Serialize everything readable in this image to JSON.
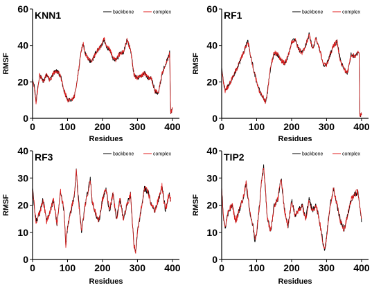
{
  "chart_data": [
    {
      "type": "line",
      "title": "KNN1",
      "xlabel": "Residues",
      "ylabel": "RMSF",
      "xlim": [
        0,
        420
      ],
      "ylim": [
        0,
        60
      ],
      "xticks": [
        0,
        100,
        200,
        300,
        400
      ],
      "yticks": [
        0,
        20,
        40,
        60
      ],
      "legend": [
        "backbone",
        "complex"
      ],
      "legend_position": "top-right",
      "series": [
        {
          "name": "backbone",
          "color": "#000000",
          "noise": 1.2,
          "x": [
            0,
            5,
            10,
            15,
            20,
            30,
            40,
            50,
            60,
            70,
            80,
            90,
            100,
            110,
            120,
            130,
            140,
            145,
            150,
            160,
            170,
            180,
            190,
            200,
            205,
            210,
            220,
            230,
            240,
            250,
            260,
            270,
            280,
            290,
            300,
            310,
            320,
            330,
            340,
            350,
            360,
            370,
            380,
            390,
            392,
            395,
            400
          ],
          "y": [
            21,
            18,
            9,
            17,
            24,
            20,
            24,
            21,
            25,
            26,
            23,
            15,
            10,
            10,
            12,
            24,
            38,
            41,
            36,
            32,
            31,
            36,
            38,
            41,
            44,
            39,
            38,
            33,
            32,
            36,
            36,
            43,
            38,
            24,
            22,
            23,
            25,
            22,
            22,
            15,
            14,
            24,
            30,
            34,
            36,
            3,
            5
          ]
        },
        {
          "name": "complex",
          "color": "#e01e1e",
          "noise": 1.4,
          "x": [
            0,
            5,
            10,
            15,
            20,
            30,
            40,
            50,
            60,
            70,
            80,
            90,
            100,
            110,
            120,
            130,
            140,
            145,
            150,
            160,
            170,
            180,
            190,
            200,
            205,
            210,
            220,
            230,
            240,
            250,
            260,
            270,
            280,
            290,
            300,
            310,
            320,
            330,
            340,
            350,
            360,
            370,
            380,
            390,
            392,
            395,
            400
          ],
          "y": [
            21,
            18,
            9,
            17,
            24,
            20,
            24,
            21,
            25,
            26,
            23,
            15,
            10,
            10,
            12,
            24,
            38,
            41,
            36,
            32,
            31,
            36,
            38,
            41,
            44,
            39,
            38,
            33,
            32,
            36,
            36,
            43,
            38,
            24,
            22,
            23,
            25,
            22,
            22,
            15,
            14,
            24,
            30,
            34,
            36,
            3,
            5
          ]
        }
      ]
    },
    {
      "type": "line",
      "title": "RF1",
      "xlabel": "Residues",
      "ylabel": "RMSF",
      "xlim": [
        0,
        420
      ],
      "ylim": [
        0,
        60
      ],
      "xticks": [
        0,
        100,
        200,
        300,
        400
      ],
      "yticks": [
        0,
        20,
        40,
        60
      ],
      "legend": [
        "backbone",
        "complex"
      ],
      "legend_position": "top-right",
      "series": [
        {
          "name": "backbone",
          "color": "#000000",
          "noise": 1.2,
          "x": [
            0,
            5,
            10,
            20,
            30,
            40,
            50,
            60,
            70,
            75,
            80,
            90,
            100,
            110,
            120,
            125,
            130,
            140,
            150,
            160,
            170,
            180,
            190,
            200,
            210,
            220,
            230,
            240,
            250,
            260,
            270,
            280,
            290,
            300,
            310,
            320,
            330,
            340,
            350,
            360,
            370,
            380,
            390,
            393,
            395,
            400
          ],
          "y": [
            27,
            20,
            15,
            18,
            22,
            26,
            30,
            35,
            40,
            42,
            37,
            28,
            20,
            14,
            11,
            9,
            13,
            28,
            36,
            35,
            32,
            30,
            34,
            42,
            43,
            38,
            36,
            40,
            46,
            38,
            44,
            38,
            30,
            29,
            35,
            40,
            42,
            31,
            27,
            25,
            35,
            34,
            36,
            35,
            2,
            2
          ]
        },
        {
          "name": "complex",
          "color": "#e01e1e",
          "noise": 1.4,
          "x": [
            0,
            5,
            10,
            20,
            30,
            40,
            50,
            60,
            70,
            75,
            80,
            90,
            100,
            110,
            120,
            125,
            130,
            140,
            150,
            160,
            170,
            180,
            190,
            200,
            210,
            220,
            230,
            240,
            250,
            260,
            270,
            280,
            290,
            300,
            310,
            320,
            330,
            340,
            350,
            360,
            370,
            380,
            390,
            393,
            395,
            400
          ],
          "y": [
            27,
            20,
            15,
            18,
            22,
            26,
            30,
            35,
            40,
            42,
            37,
            28,
            20,
            14,
            11,
            9,
            13,
            28,
            36,
            35,
            32,
            30,
            34,
            42,
            43,
            38,
            36,
            40,
            46,
            38,
            44,
            38,
            30,
            29,
            35,
            40,
            42,
            31,
            27,
            25,
            35,
            34,
            36,
            35,
            2,
            2
          ]
        }
      ]
    },
    {
      "type": "line",
      "title": "RF3",
      "xlabel": "Residues",
      "ylabel": "RMSF",
      "xlim": [
        0,
        420
      ],
      "ylim": [
        0,
        40
      ],
      "xticks": [
        0,
        100,
        200,
        300,
        400
      ],
      "yticks": [
        0,
        10,
        20,
        30,
        40
      ],
      "legend": [
        "backbone",
        "complex"
      ],
      "legend_position": "top-right",
      "series": [
        {
          "name": "backbone",
          "color": "#000000",
          "noise": 1.0,
          "x": [
            0,
            5,
            10,
            20,
            30,
            40,
            50,
            60,
            70,
            80,
            90,
            95,
            100,
            110,
            120,
            125,
            130,
            140,
            150,
            160,
            165,
            170,
            180,
            190,
            200,
            210,
            220,
            230,
            240,
            250,
            260,
            270,
            280,
            290,
            295,
            300,
            310,
            320,
            330,
            340,
            350,
            360,
            370,
            380,
            390,
            395
          ],
          "y": [
            26,
            20,
            14,
            17,
            22,
            14,
            18,
            22,
            13,
            25,
            18,
            5,
            12,
            18,
            24,
            33,
            24,
            10,
            20,
            26,
            30,
            22,
            17,
            14,
            22,
            26,
            18,
            24,
            15,
            22,
            15,
            20,
            24,
            5,
            3,
            10,
            18,
            26,
            25,
            20,
            18,
            22,
            27,
            18,
            24,
            22
          ]
        },
        {
          "name": "complex",
          "color": "#e01e1e",
          "noise": 1.2,
          "x": [
            0,
            5,
            10,
            20,
            30,
            40,
            50,
            60,
            70,
            80,
            90,
            95,
            100,
            110,
            120,
            125,
            130,
            140,
            150,
            160,
            165,
            170,
            180,
            190,
            200,
            210,
            220,
            230,
            240,
            250,
            260,
            270,
            280,
            290,
            295,
            300,
            310,
            320,
            330,
            340,
            350,
            360,
            370,
            380,
            390,
            395
          ],
          "y": [
            26,
            20,
            14,
            17,
            22,
            14,
            18,
            22,
            13,
            25,
            18,
            5,
            12,
            18,
            24,
            33,
            24,
            10,
            20,
            26,
            30,
            22,
            17,
            14,
            22,
            26,
            18,
            24,
            15,
            22,
            15,
            20,
            24,
            5,
            3,
            10,
            18,
            26,
            25,
            20,
            18,
            22,
            27,
            18,
            24,
            22
          ]
        }
      ]
    },
    {
      "type": "line",
      "title": "TIP2",
      "xlabel": "Residues",
      "ylabel": "RMSF",
      "xlim": [
        0,
        420
      ],
      "ylim": [
        0,
        40
      ],
      "xticks": [
        0,
        100,
        200,
        300,
        400
      ],
      "yticks": [
        0,
        10,
        20,
        30,
        40
      ],
      "legend": [
        "backbone",
        "complex"
      ],
      "legend_position": "top-right",
      "series": [
        {
          "name": "backbone",
          "color": "#000000",
          "noise": 1.0,
          "x": [
            0,
            5,
            10,
            20,
            30,
            40,
            50,
            60,
            70,
            80,
            90,
            95,
            100,
            110,
            115,
            120,
            125,
            130,
            140,
            150,
            160,
            170,
            180,
            190,
            200,
            210,
            220,
            230,
            240,
            250,
            260,
            270,
            280,
            290,
            295,
            300,
            310,
            320,
            330,
            340,
            350,
            360,
            370,
            380,
            390,
            400
          ],
          "y": [
            26,
            16,
            12,
            18,
            20,
            14,
            18,
            22,
            28,
            18,
            12,
            7,
            10,
            22,
            30,
            34,
            26,
            16,
            10,
            20,
            22,
            30,
            18,
            12,
            22,
            16,
            18,
            20,
            15,
            22,
            18,
            20,
            14,
            6,
            3,
            8,
            20,
            26,
            20,
            14,
            11,
            16,
            22,
            24,
            25,
            14
          ]
        },
        {
          "name": "complex",
          "color": "#e01e1e",
          "noise": 1.2,
          "x": [
            0,
            5,
            10,
            20,
            30,
            40,
            50,
            60,
            70,
            80,
            90,
            95,
            100,
            110,
            115,
            120,
            125,
            130,
            140,
            150,
            160,
            170,
            180,
            190,
            200,
            210,
            220,
            230,
            240,
            250,
            260,
            270,
            280,
            290,
            295,
            300,
            310,
            320,
            330,
            340,
            350,
            360,
            370,
            380,
            390,
            400
          ],
          "y": [
            26,
            16,
            12,
            18,
            20,
            14,
            18,
            22,
            28,
            18,
            12,
            7,
            10,
            22,
            30,
            34,
            26,
            16,
            10,
            20,
            22,
            30,
            18,
            12,
            22,
            16,
            18,
            20,
            15,
            22,
            18,
            20,
            14,
            6,
            3,
            8,
            20,
            26,
            20,
            14,
            11,
            16,
            22,
            24,
            25,
            14
          ]
        }
      ]
    }
  ]
}
